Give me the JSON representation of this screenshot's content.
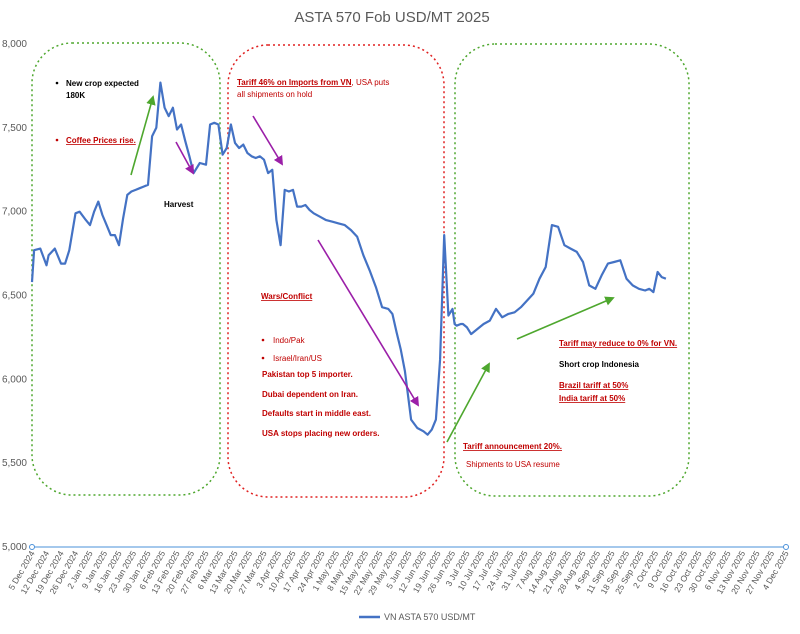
{
  "chart_data": {
    "type": "line",
    "title": "ASTA 570 Fob USD/MT 2025",
    "ylim": [
      5000,
      8000
    ],
    "yticks": [
      "5,000",
      "5,500",
      "6,000",
      "6,500",
      "7,000",
      "7,500",
      "8,000"
    ],
    "x_ticks": [
      "5 Dec 2024",
      "12 Dec 2024",
      "19 Dec 2024",
      "26 Dec 2024",
      "2 Jan 2025",
      "9 Jan 2025",
      "16 Jan 2025",
      "23 Jan 2025",
      "30 Jan 2025",
      "6 Feb 2025",
      "13 Feb 2025",
      "20 Feb 2025",
      "27 Feb 2025",
      "6 Mar 2025",
      "13 Mar 2025",
      "20 Mar 2025",
      "27 Mar 2025",
      "3 Apr 2025",
      "10 Apr 2025",
      "17 Apr 2025",
      "24 Apr 2025",
      "1 May 2025",
      "8 May 2025",
      "15 May 2025",
      "22 May 2025",
      "29 May 2025",
      "5 Jun 2025",
      "12 Jun 2025",
      "19 Jun 2025",
      "26 Jun 2025",
      "3 Jul 2025",
      "10 Jul 2025",
      "17 Jul 2025",
      "24 Jul 2025",
      "31 Jul 2025",
      "7 Aug 2025",
      "14 Aug 2025",
      "21 Aug 2025",
      "28 Aug 2025",
      "4 Sep 2025",
      "11 Sep 2025",
      "18 Sep 2025",
      "25 Sep 2025",
      "2 Oct 2025",
      "9 Oct 2025",
      "16 Oct 2025",
      "23 Oct 2025",
      "30 Oct 2025",
      "6 Nov 2025",
      "13 Nov 2025",
      "20 Nov 2025",
      "27 Nov 2025",
      "4 Dec 2025"
    ],
    "series": [
      {
        "name": "VN ASTA 570 USD/MT",
        "color": "#4472c4",
        "x": [
          "2024-12-05",
          "2024-12-06",
          "2024-12-09",
          "2024-12-12",
          "2024-12-13",
          "2024-12-16",
          "2024-12-19",
          "2024-12-21",
          "2024-12-23",
          "2024-12-26",
          "2024-12-28",
          "2024-12-31",
          "2025-01-02",
          "2025-01-04",
          "2025-01-06",
          "2025-01-08",
          "2025-01-10",
          "2025-01-12",
          "2025-01-14",
          "2025-01-16",
          "2025-01-18",
          "2025-01-20",
          "2025-01-22",
          "2025-01-24",
          "2025-01-26",
          "2025-01-28",
          "2025-01-30",
          "2025-02-01",
          "2025-02-03",
          "2025-02-05",
          "2025-02-07",
          "2025-02-09",
          "2025-02-11",
          "2025-02-13",
          "2025-02-15",
          "2025-02-17",
          "2025-02-19",
          "2025-02-21",
          "2025-02-24",
          "2025-02-27",
          "2025-03-01",
          "2025-03-03",
          "2025-03-05",
          "2025-03-07",
          "2025-03-09",
          "2025-03-11",
          "2025-03-13",
          "2025-03-15",
          "2025-03-17",
          "2025-03-19",
          "2025-03-21",
          "2025-03-23",
          "2025-03-25",
          "2025-03-27",
          "2025-03-29",
          "2025-03-31",
          "2025-04-02",
          "2025-04-04",
          "2025-04-06",
          "2025-04-08",
          "2025-04-10",
          "2025-04-12",
          "2025-04-14",
          "2025-04-16",
          "2025-04-18",
          "2025-04-20",
          "2025-04-23",
          "2025-04-26",
          "2025-04-29",
          "2025-05-02",
          "2025-05-05",
          "2025-05-08",
          "2025-05-11",
          "2025-05-14",
          "2025-05-17",
          "2025-05-20",
          "2025-05-23",
          "2025-05-26",
          "2025-05-28",
          "2025-05-30",
          "2025-06-01",
          "2025-06-03",
          "2025-06-06",
          "2025-06-09",
          "2025-06-12",
          "2025-06-14",
          "2025-06-16",
          "2025-06-18",
          "2025-06-20",
          "2025-06-22",
          "2025-06-24",
          "2025-06-26",
          "2025-06-27",
          "2025-06-28",
          "2025-06-30",
          "2025-07-01",
          "2025-07-03",
          "2025-07-05",
          "2025-07-08",
          "2025-07-11",
          "2025-07-14",
          "2025-07-17",
          "2025-07-20",
          "2025-07-23",
          "2025-07-26",
          "2025-07-29",
          "2025-08-01",
          "2025-08-04",
          "2025-08-07",
          "2025-08-10",
          "2025-08-13",
          "2025-08-16",
          "2025-08-19",
          "2025-08-22",
          "2025-08-25",
          "2025-08-28",
          "2025-08-31",
          "2025-09-03",
          "2025-09-06",
          "2025-09-09",
          "2025-09-12",
          "2025-09-15",
          "2025-09-18",
          "2025-09-21",
          "2025-09-24",
          "2025-09-27",
          "2025-09-29",
          "2025-10-01",
          "2025-10-03",
          "2025-10-05",
          "2025-10-07"
        ],
        "values": [
          6580,
          6770,
          6780,
          6680,
          6740,
          6780,
          6690,
          6690,
          6770,
          6990,
          7000,
          6950,
          6920,
          7000,
          7060,
          6980,
          6920,
          6860,
          6860,
          6800,
          6960,
          7100,
          7120,
          7130,
          7140,
          7150,
          7160,
          7450,
          7500,
          7770,
          7620,
          7570,
          7620,
          7490,
          7520,
          7420,
          7330,
          7230,
          7290,
          7280,
          7520,
          7530,
          7520,
          7340,
          7380,
          7520,
          7410,
          7380,
          7400,
          7350,
          7330,
          7320,
          7330,
          7310,
          7230,
          7250,
          6950,
          6800,
          7130,
          7120,
          7130,
          7030,
          7030,
          7040,
          7010,
          6990,
          6970,
          6950,
          6940,
          6930,
          6920,
          6890,
          6850,
          6740,
          6650,
          6550,
          6430,
          6420,
          6390,
          6280,
          6180,
          6050,
          5760,
          5710,
          5690,
          5670,
          5700,
          5760,
          6120,
          6860,
          6380,
          6420,
          6330,
          6320,
          6330,
          6330,
          6310,
          6270,
          6300,
          6330,
          6350,
          6420,
          6370,
          6390,
          6400,
          6430,
          6470,
          6510,
          6600,
          6670,
          6920,
          6910,
          6800,
          6780,
          6760,
          6700,
          6560,
          6540,
          6620,
          6690,
          6700,
          6710,
          6600,
          6560,
          6540,
          6530,
          6540,
          6520,
          6640,
          6610,
          6600
        ]
      }
    ],
    "annotations": {
      "new_crop": "New crop expected",
      "new_crop_2": "180K",
      "coffee": "Coffee Prices rise.",
      "harvest": "Harvest",
      "tariff46_u": "Tariff 46% on Imports from VN",
      "tariff46_rest": ", USA puts",
      "tariff46_2": "all shipments on hold",
      "wars": "Wars/Conflict",
      "indopak": "Indo/Pak",
      "israel": "Israel/Iran/US",
      "pak": "Pakistan  top 5 importer.",
      "dubai": "Dubai dependent on Iran.",
      "defaults": "Defaults start in middle east.",
      "usa_stops": "USA stops placing new orders.",
      "tariff20": "Tariff announcement 20%.",
      "shipments": "Shipments to USA resume",
      "tariff_reduce": "Tariff  may reduce to  0% for VN.",
      "short_crop": "Short crop Indonesia",
      "brazil": "Brazil tariff at 50%",
      "india": "India tariff at 50%"
    },
    "colors": {
      "red": "#c00000",
      "green": "#4ea72e",
      "purple": "#9b1fa8",
      "line": "#4472c4",
      "axis": "#d9d9d9"
    }
  }
}
